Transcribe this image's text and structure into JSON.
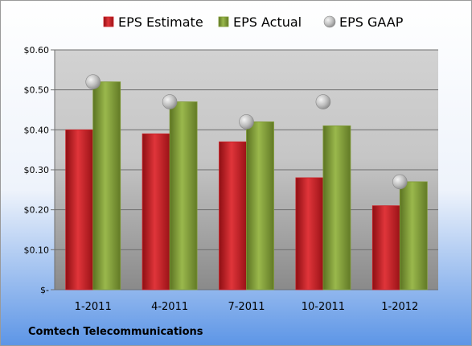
{
  "chart_data": {
    "type": "bar",
    "categories": [
      "1-2011",
      "4-2011",
      "7-2011",
      "10-2011",
      "1-2012"
    ],
    "series": [
      {
        "name": "EPS Estimate",
        "kind": "bar",
        "color": "#cc1f25",
        "values": [
          0.4,
          0.39,
          0.37,
          0.28,
          0.21
        ]
      },
      {
        "name": "EPS Actual",
        "kind": "bar",
        "color": "#7f9a35",
        "values": [
          0.52,
          0.47,
          0.42,
          0.41,
          0.27
        ]
      },
      {
        "name": "EPS GAAP",
        "kind": "scatter",
        "color": "#b4b4b4",
        "values": [
          0.52,
          0.47,
          0.42,
          0.47,
          0.27
        ]
      }
    ],
    "ylim": [
      0,
      0.6
    ],
    "y_ticks": [
      0,
      0.1,
      0.2,
      0.3,
      0.4,
      0.5,
      0.6
    ],
    "y_tick_labels": [
      "$-",
      "$0.10",
      "$0.20",
      "$0.30",
      "$0.40",
      "$0.50",
      "$0.60"
    ],
    "grid": true,
    "legend_position": "top",
    "footer_label": "Comtech Telecommunications"
  }
}
